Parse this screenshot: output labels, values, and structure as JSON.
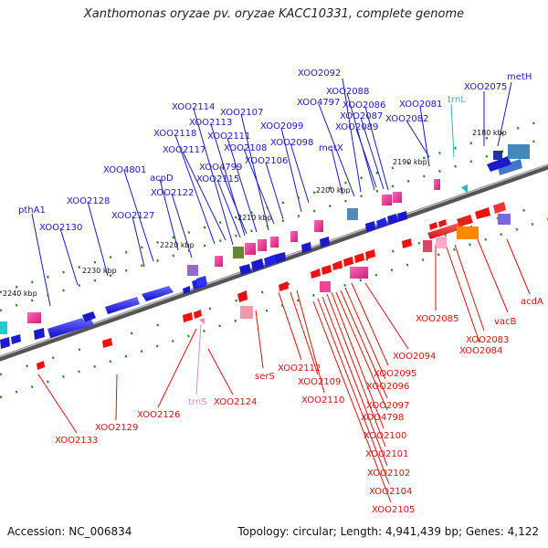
{
  "title": "Xanthomonas oryzae pv. oryzae KACC10331, complete genome",
  "accession": "Accession: NC_006834",
  "summary": "Topology: circular; Length: 4,941,439 bp; Genes: 4,122",
  "scale_labels": [
    "2180 kbp",
    "2190 kbp",
    "2200 kbp",
    "2210 kbp",
    "2220 kbp",
    "2230 kbp",
    "2240 kbp"
  ],
  "colors": {
    "forward_label": "#1a1acc",
    "reverse_label": "#dd1111",
    "trna_forward": "#22bbcc",
    "trna_reverse": "#ee88bb",
    "cds_forward": "#1111ee",
    "cds_reverse": "#ee1111",
    "backbone": "#777777",
    "tick": "#228822"
  },
  "forward_labels": [
    "XOO2092",
    "metH",
    "XOO2088",
    "XOO4797",
    "XOO2086",
    "XOO2081",
    "XOO2075",
    "XOO2087",
    "trnL",
    "XOO2082",
    "XOO2089",
    "XOO2114",
    "XOO2107",
    "XOO2113",
    "XOO2099",
    "XOO2118",
    "XOO2111",
    "XOO2098",
    "metX",
    "XOO2117",
    "XOO2108",
    "XOO2106",
    "XOO4801",
    "acpD",
    "XOO4799",
    "XOO2115",
    "XOO2122",
    "XOO2128",
    "XOO2127",
    "pthA1",
    "XOO2130"
  ],
  "reverse_labels": [
    "acdA",
    "vacB",
    "XOO2085",
    "XOO2083",
    "XOO2084",
    "XOO2094",
    "serS",
    "XOO2112",
    "XOO2095",
    "XOO2109",
    "XOO2096",
    "XOO2110",
    "XOO2097",
    "XOO4798",
    "XOO2126",
    "trnS",
    "XOO2124",
    "XOO2100",
    "XOO2129",
    "XOO2101",
    "XOO2133",
    "XOO2102",
    "XOO2104",
    "XOO2105"
  ]
}
